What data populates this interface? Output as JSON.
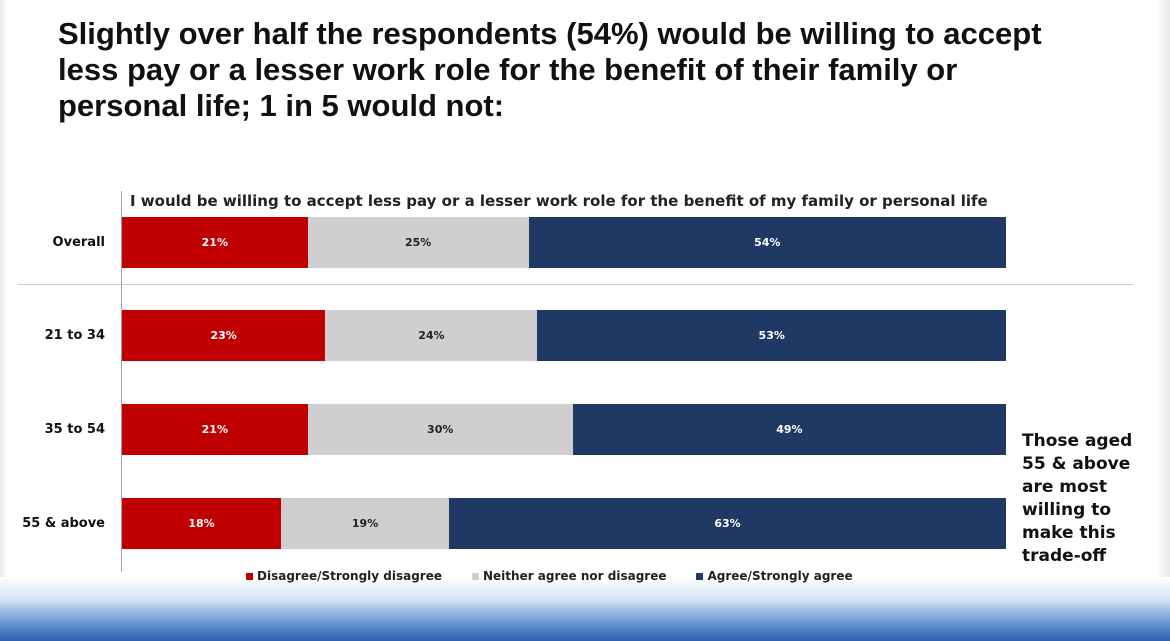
{
  "title": "Slightly over half the respondents (54%) would be willing to accept less pay or a lesser work role for the benefit of their family or personal life; 1 in 5 would not:",
  "callout": "Those aged 55 & above are most willing to make this trade-off",
  "chart_data": {
    "type": "bar",
    "orientation": "horizontal",
    "stacked": true,
    "normalized_percent": true,
    "title": "I would be willing to accept less pay or a lesser work role for the benefit of my family or personal life",
    "categories": [
      "Overall",
      "21 to 34",
      "35 to 54",
      "55 & above"
    ],
    "series": [
      {
        "name": "Disagree/Strongly disagree",
        "color": "#c00000",
        "values": [
          21,
          23,
          21,
          18
        ],
        "labels": [
          "21%",
          "23%",
          "21%",
          "18%"
        ]
      },
      {
        "name": "Neither agree nor disagree",
        "color": "#d0cece",
        "values": [
          25,
          24,
          30,
          19
        ],
        "labels": [
          "25%",
          "24%",
          "30%",
          "19%"
        ]
      },
      {
        "name": "Agree/Strongly agree",
        "color": "#203864",
        "values": [
          54,
          53,
          49,
          63
        ],
        "labels": [
          "54%",
          "53%",
          "49%",
          "63%"
        ]
      }
    ],
    "legend_position": "bottom",
    "grid": false
  }
}
